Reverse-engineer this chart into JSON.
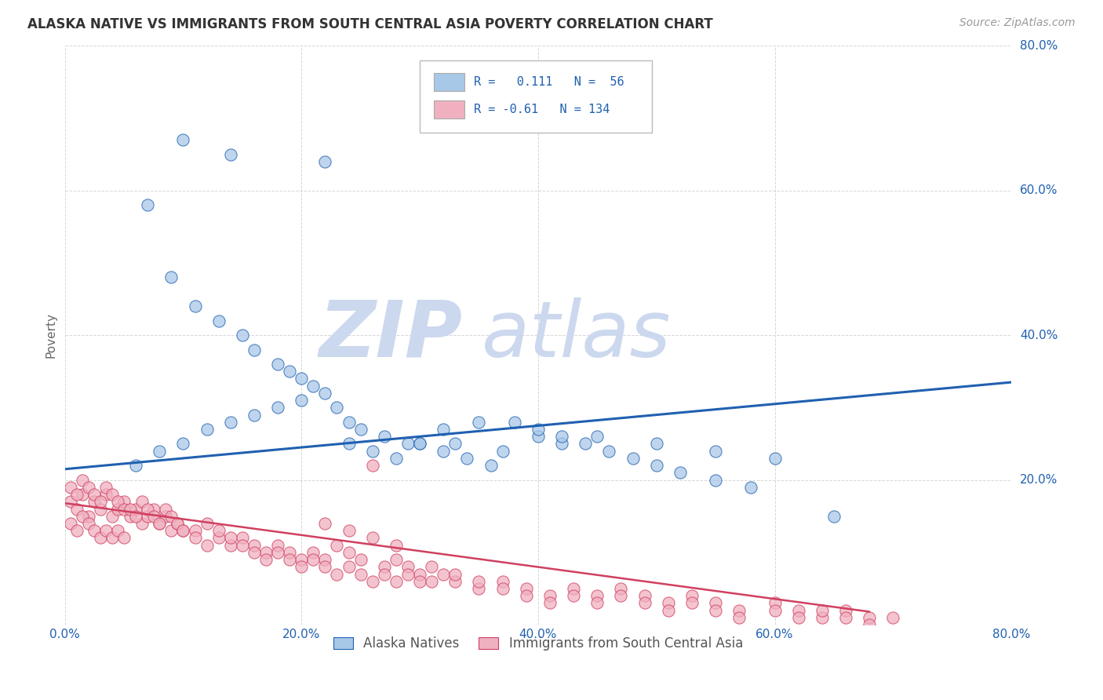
{
  "title": "ALASKA NATIVE VS IMMIGRANTS FROM SOUTH CENTRAL ASIA POVERTY CORRELATION CHART",
  "source": "Source: ZipAtlas.com",
  "ylabel": "Poverty",
  "xlim": [
    0,
    0.8
  ],
  "ylim": [
    0,
    0.8
  ],
  "xticks": [
    0.0,
    0.2,
    0.4,
    0.6,
    0.8
  ],
  "yticks": [
    0.0,
    0.2,
    0.4,
    0.6,
    0.8
  ],
  "xticklabels": [
    "0.0%",
    "20.0%",
    "40.0%",
    "60.0%",
    "80.0%"
  ],
  "right_ylabels": [
    "20.0%",
    "40.0%",
    "60.0%",
    "80.0%"
  ],
  "right_yticks": [
    0.2,
    0.4,
    0.6,
    0.8
  ],
  "blue_color": "#a8c8e8",
  "pink_color": "#f0b0c0",
  "blue_line_color": "#2060b0",
  "pink_line_color": "#d04060",
  "blue_R": 0.111,
  "blue_N": 56,
  "pink_R": -0.61,
  "pink_N": 134,
  "watermark_zip": "ZIP",
  "watermark_atlas": "atlas",
  "watermark_color": "#ccd8ee",
  "background_color": "#ffffff",
  "grid_color": "#cccccc",
  "blue_line_x0": 0.0,
  "blue_line_y0": 0.215,
  "blue_line_x1": 0.8,
  "blue_line_y1": 0.335,
  "pink_line_x0": 0.0,
  "pink_line_y0": 0.168,
  "pink_line_x1": 0.68,
  "pink_line_y1": 0.018,
  "blue_scatter_x": [
    0.1,
    0.14,
    0.22,
    0.07,
    0.09,
    0.11,
    0.13,
    0.15,
    0.16,
    0.18,
    0.19,
    0.2,
    0.21,
    0.23,
    0.24,
    0.25,
    0.27,
    0.29,
    0.3,
    0.32,
    0.33,
    0.35,
    0.37,
    0.4,
    0.42,
    0.45,
    0.5,
    0.55,
    0.6,
    0.65,
    0.06,
    0.08,
    0.1,
    0.12,
    0.14,
    0.16,
    0.18,
    0.2,
    0.22,
    0.24,
    0.26,
    0.28,
    0.3,
    0.32,
    0.34,
    0.36,
    0.38,
    0.4,
    0.42,
    0.44,
    0.46,
    0.48,
    0.5,
    0.52,
    0.55,
    0.58
  ],
  "blue_scatter_y": [
    0.67,
    0.65,
    0.64,
    0.58,
    0.48,
    0.44,
    0.42,
    0.4,
    0.38,
    0.36,
    0.35,
    0.34,
    0.33,
    0.3,
    0.28,
    0.27,
    0.26,
    0.25,
    0.25,
    0.27,
    0.25,
    0.28,
    0.24,
    0.26,
    0.25,
    0.26,
    0.25,
    0.24,
    0.23,
    0.15,
    0.22,
    0.24,
    0.25,
    0.27,
    0.28,
    0.29,
    0.3,
    0.31,
    0.32,
    0.25,
    0.24,
    0.23,
    0.25,
    0.24,
    0.23,
    0.22,
    0.28,
    0.27,
    0.26,
    0.25,
    0.24,
    0.23,
    0.22,
    0.21,
    0.2,
    0.19
  ],
  "pink_scatter_x": [
    0.005,
    0.01,
    0.015,
    0.02,
    0.025,
    0.03,
    0.035,
    0.04,
    0.045,
    0.05,
    0.055,
    0.06,
    0.065,
    0.07,
    0.075,
    0.08,
    0.085,
    0.09,
    0.095,
    0.1,
    0.005,
    0.01,
    0.015,
    0.02,
    0.025,
    0.03,
    0.035,
    0.04,
    0.045,
    0.05,
    0.055,
    0.06,
    0.065,
    0.07,
    0.075,
    0.08,
    0.085,
    0.09,
    0.095,
    0.1,
    0.005,
    0.01,
    0.015,
    0.02,
    0.025,
    0.03,
    0.035,
    0.04,
    0.045,
    0.05,
    0.11,
    0.12,
    0.13,
    0.14,
    0.15,
    0.16,
    0.17,
    0.18,
    0.19,
    0.2,
    0.11,
    0.12,
    0.13,
    0.14,
    0.15,
    0.16,
    0.17,
    0.18,
    0.19,
    0.2,
    0.21,
    0.22,
    0.23,
    0.24,
    0.25,
    0.26,
    0.27,
    0.28,
    0.29,
    0.3,
    0.21,
    0.22,
    0.23,
    0.24,
    0.25,
    0.26,
    0.27,
    0.28,
    0.29,
    0.3,
    0.31,
    0.32,
    0.33,
    0.35,
    0.37,
    0.39,
    0.41,
    0.43,
    0.45,
    0.47,
    0.49,
    0.51,
    0.53,
    0.55,
    0.57,
    0.6,
    0.62,
    0.64,
    0.66,
    0.68,
    0.31,
    0.33,
    0.35,
    0.37,
    0.39,
    0.41,
    0.43,
    0.45,
    0.47,
    0.49,
    0.51,
    0.53,
    0.55,
    0.57,
    0.6,
    0.62,
    0.64,
    0.66,
    0.68,
    0.7,
    0.22,
    0.24,
    0.26,
    0.28
  ],
  "pink_scatter_y": [
    0.17,
    0.16,
    0.18,
    0.15,
    0.17,
    0.16,
    0.18,
    0.15,
    0.16,
    0.17,
    0.15,
    0.16,
    0.14,
    0.15,
    0.16,
    0.14,
    0.15,
    0.13,
    0.14,
    0.13,
    0.19,
    0.18,
    0.2,
    0.19,
    0.18,
    0.17,
    0.19,
    0.18,
    0.17,
    0.16,
    0.16,
    0.15,
    0.17,
    0.16,
    0.15,
    0.14,
    0.16,
    0.15,
    0.14,
    0.13,
    0.14,
    0.13,
    0.15,
    0.14,
    0.13,
    0.12,
    0.13,
    0.12,
    0.13,
    0.12,
    0.13,
    0.14,
    0.12,
    0.11,
    0.12,
    0.11,
    0.1,
    0.11,
    0.1,
    0.09,
    0.12,
    0.11,
    0.13,
    0.12,
    0.11,
    0.1,
    0.09,
    0.1,
    0.09,
    0.08,
    0.1,
    0.09,
    0.11,
    0.1,
    0.09,
    0.22,
    0.08,
    0.09,
    0.08,
    0.07,
    0.09,
    0.08,
    0.07,
    0.08,
    0.07,
    0.06,
    0.07,
    0.06,
    0.07,
    0.06,
    0.06,
    0.07,
    0.06,
    0.05,
    0.06,
    0.05,
    0.04,
    0.05,
    0.04,
    0.05,
    0.04,
    0.03,
    0.04,
    0.03,
    0.02,
    0.03,
    0.02,
    0.01,
    0.02,
    0.01,
    0.08,
    0.07,
    0.06,
    0.05,
    0.04,
    0.03,
    0.04,
    0.03,
    0.04,
    0.03,
    0.02,
    0.03,
    0.02,
    0.01,
    0.02,
    0.01,
    0.02,
    0.01,
    0.0,
    0.01,
    0.14,
    0.13,
    0.12,
    0.11
  ]
}
